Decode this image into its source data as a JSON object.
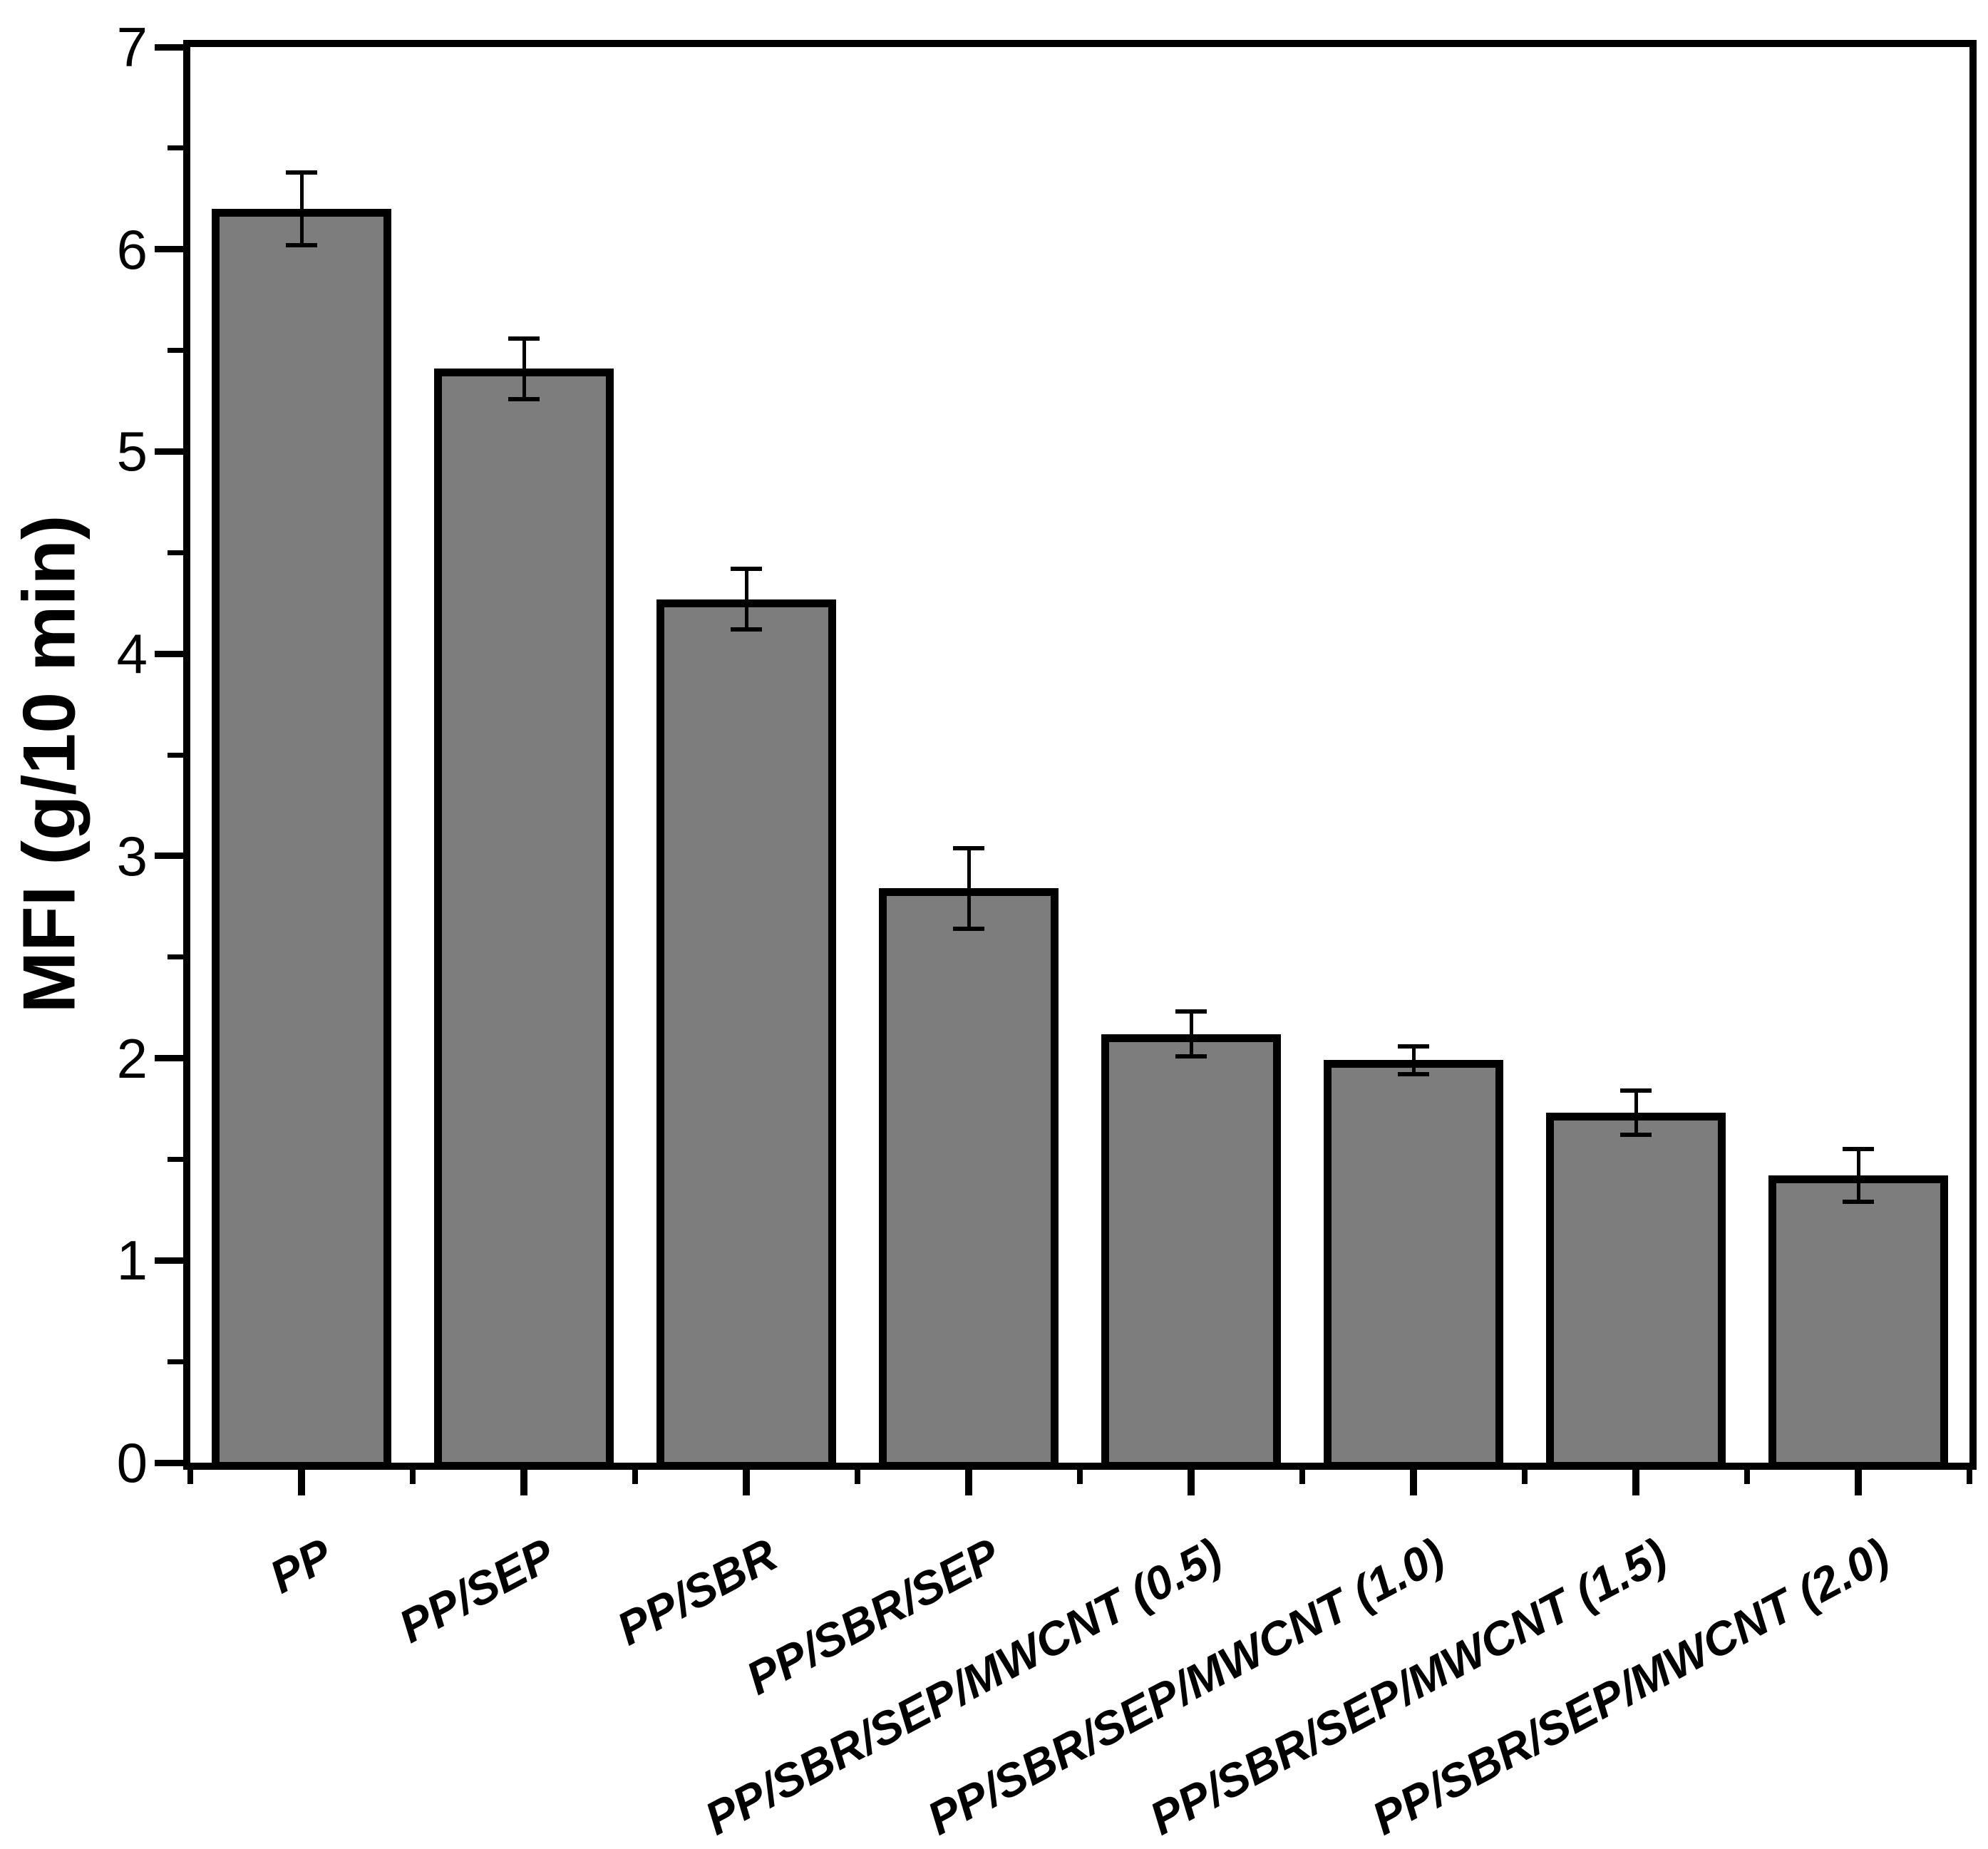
{
  "chart_data": {
    "type": "bar",
    "title": "",
    "xlabel": "",
    "ylabel": "MFI (g/10 min)",
    "ylim": [
      0,
      7
    ],
    "ytick_interval": 1,
    "ytick_minor_interval": 0.5,
    "ytick_labels": [
      "0",
      "1",
      "2",
      "3",
      "4",
      "5",
      "6",
      "7"
    ],
    "grid": false,
    "legend": null,
    "categories": [
      "PP",
      "PP/SEP",
      "PP/SBR",
      "PP/SBR/SEP",
      "PP/SBR/SEP/MWCNT (0.5)",
      "PP/SBR/SEP/MWCNT (1.0)",
      "PP/SBR/SEP/MWCNT (1.5)",
      "PP/SBR/SEP/MWCNT (2.0)"
    ],
    "series": [
      {
        "name": "MFI",
        "values": [
          6.2,
          5.41,
          4.27,
          2.84,
          2.12,
          1.99,
          1.73,
          1.42
        ],
        "errors": [
          0.18,
          0.15,
          0.15,
          0.2,
          0.11,
          0.07,
          0.11,
          0.13
        ]
      }
    ],
    "colors": {
      "bar_fill": "#7d7d7d",
      "bar_border": "#000000",
      "axis": "#000000",
      "text": "#000000",
      "background": "#ffffff"
    },
    "category_label_rotation_deg": -28
  }
}
